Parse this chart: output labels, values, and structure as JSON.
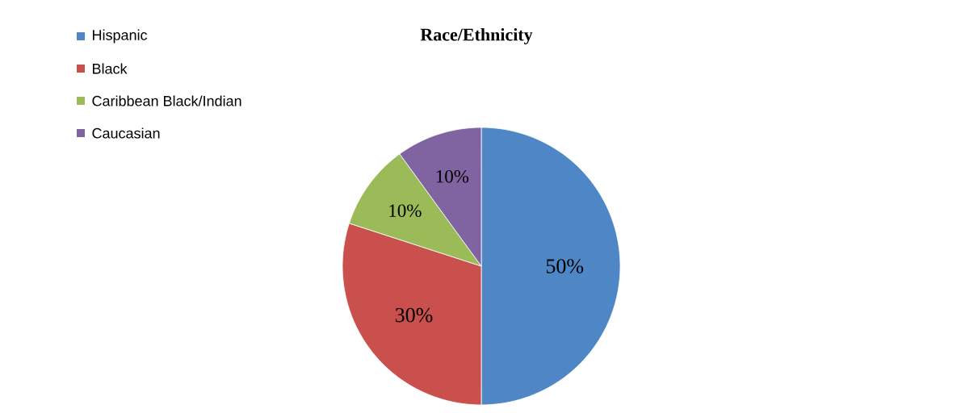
{
  "chart_data": {
    "type": "pie",
    "title": "Race/Ethnicity",
    "categories": [
      "Hispanic",
      "Black",
      "Caribbean Black/Indian",
      "Caucasian"
    ],
    "values": [
      50,
      30,
      10,
      10
    ],
    "colors": [
      "#4f86c6",
      "#c9504d",
      "#9bbb59",
      "#8064a2"
    ],
    "value_labels": [
      "50%",
      "30%",
      "10%",
      "10%"
    ],
    "legend": "top left"
  }
}
